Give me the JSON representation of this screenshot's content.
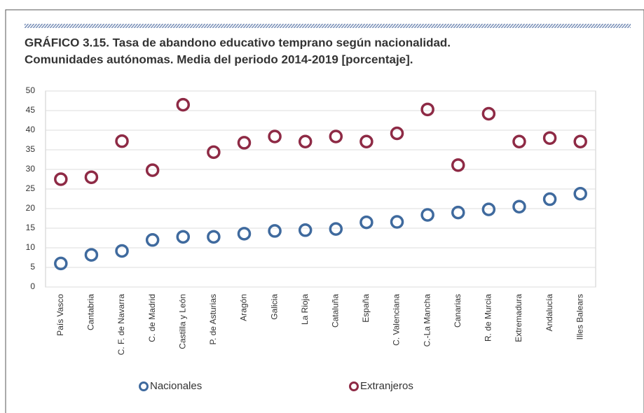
{
  "chart_data": {
    "type": "scatter",
    "title": "GRÁFICO 3.15. Tasa de abandono educativo temprano según nacionalidad.",
    "subtitle": "Comunidades autónomas. Media del periodo 2014-2019 [porcentaje].",
    "categories": [
      "País Vasco",
      "Cantabria",
      "C. F. de Navarra",
      "C. de Madrid",
      "Castilla y León",
      "P. de Asturias",
      "Aragón",
      "Galicia",
      "La Rioja",
      "Cataluña",
      "España",
      "C. Valenciana",
      "C.-La Mancha",
      "Canarias",
      "R. de Murcia",
      "Extremadura",
      "Andalucía",
      "Illes Balears"
    ],
    "series": [
      {
        "name": "Nacionales",
        "color": "#3f6a9e",
        "values": [
          6,
          8.2,
          9.2,
          12,
          12.8,
          12.8,
          13.6,
          14.3,
          14.5,
          14.8,
          16.5,
          16.6,
          18.4,
          19,
          19.8,
          20.5,
          22.4,
          23.8
        ]
      },
      {
        "name": "Extranjeros",
        "color": "#8e2a45",
        "values": [
          27.5,
          28,
          37.2,
          29.8,
          46.5,
          34.4,
          36.8,
          38.4,
          37.1,
          38.4,
          37.1,
          39.2,
          45.3,
          31.1,
          44.2,
          37.1,
          38,
          37.1
        ]
      }
    ],
    "ylim": [
      0,
      50
    ],
    "yticks": [
      0,
      5,
      10,
      15,
      20,
      25,
      30,
      35,
      40,
      45,
      50
    ],
    "grid": true,
    "legend": "bottom"
  }
}
